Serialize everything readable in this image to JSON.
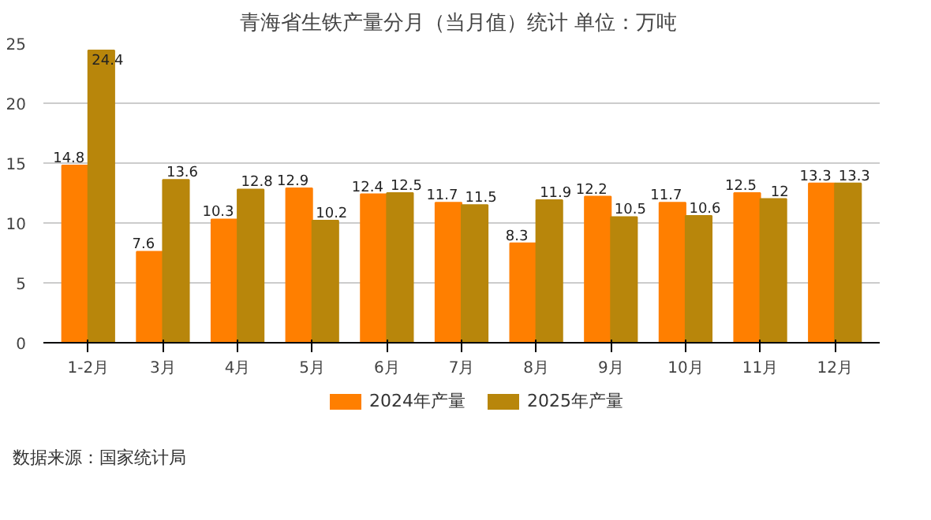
{
  "chart_data": {
    "type": "bar",
    "title": "青海省生铁产量分月（当月值）统计  单位：万吨",
    "categories": [
      "1-2月",
      "3月",
      "4月",
      "5月",
      "6月",
      "7月",
      "8月",
      "9月",
      "10月",
      "11月",
      "12月"
    ],
    "series": [
      {
        "name": "2024年产量",
        "color": "#ff7f00",
        "values": [
          14.8,
          7.6,
          10.3,
          12.9,
          12.4,
          11.7,
          8.3,
          12.2,
          11.7,
          12.5,
          13.3
        ]
      },
      {
        "name": "2025年产量",
        "color": "#b8860b",
        "values": [
          24.4,
          13.6,
          12.8,
          10.2,
          12.5,
          11.5,
          11.9,
          10.5,
          10.6,
          12,
          13.3
        ]
      }
    ],
    "ylim": [
      0,
      25
    ],
    "yticks": [
      0,
      5,
      10,
      15,
      20,
      25
    ],
    "grid": "y",
    "legend": "bottom",
    "data_labels": true,
    "annotations": [
      "数据来源：国家统计局"
    ]
  }
}
